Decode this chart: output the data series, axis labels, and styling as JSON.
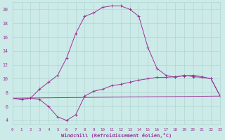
{
  "xlabel": "Windchill (Refroidissement éolien,°C)",
  "background_color": "#cceae7",
  "grid_color": "#b0d8d4",
  "line_color": "#993399",
  "xlim": [
    0,
    23
  ],
  "ylim": [
    3.5,
    21.0
  ],
  "xticks": [
    0,
    1,
    2,
    3,
    4,
    5,
    6,
    7,
    8,
    9,
    10,
    11,
    12,
    13,
    14,
    15,
    16,
    17,
    18,
    19,
    20,
    21,
    22,
    23
  ],
  "yticks": [
    4,
    6,
    8,
    10,
    12,
    14,
    16,
    18,
    20
  ],
  "line1_x": [
    0,
    1,
    2,
    3,
    4,
    5,
    6,
    7,
    8,
    9,
    10,
    11,
    12,
    13,
    14,
    15,
    16,
    17,
    18,
    19,
    20,
    21,
    22,
    23
  ],
  "line1_y": [
    7.2,
    7.0,
    7.2,
    7.0,
    6.0,
    4.5,
    4.0,
    4.8,
    7.5,
    8.2,
    8.5,
    9.0,
    9.2,
    9.5,
    9.8,
    10.0,
    10.2,
    10.2,
    10.3,
    10.4,
    10.5,
    10.3,
    10.0,
    7.5
  ],
  "line2_x": [
    0,
    1,
    2,
    3,
    4,
    5,
    6,
    7,
    8,
    9,
    10,
    11,
    12,
    13,
    14,
    15,
    16,
    17,
    18,
    19,
    20,
    21,
    22,
    23
  ],
  "line2_y": [
    7.2,
    7.0,
    7.2,
    8.5,
    9.5,
    10.5,
    13.0,
    16.5,
    19.0,
    19.5,
    20.3,
    20.5,
    20.5,
    20.0,
    19.0,
    14.5,
    11.5,
    10.5,
    10.2,
    10.5,
    10.3,
    10.2,
    10.0,
    7.5
  ],
  "line3_x": [
    0,
    23
  ],
  "line3_y": [
    7.2,
    7.5
  ]
}
